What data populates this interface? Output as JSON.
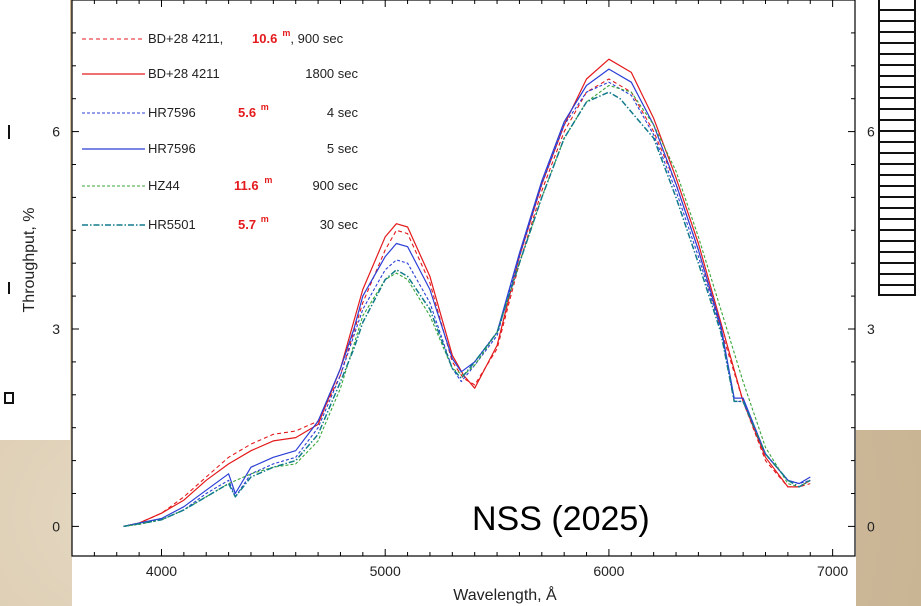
{
  "chart_data": {
    "type": "line",
    "xlabel": "Wavelength, Å",
    "ylabel": "Throughput, %",
    "xlim": [
      3600,
      7100
    ],
    "ylim": [
      -0.45,
      8.0
    ],
    "xticks": [
      4000,
      5000,
      6000,
      7000
    ],
    "yticks": [
      0,
      3,
      6
    ],
    "xtick_labels": [
      "4000",
      "5000",
      "6000",
      "7000"
    ],
    "ytick_labels": [
      "0",
      "3",
      "6"
    ],
    "grid": false,
    "legend_position": "top-left",
    "annotation": "NSS (2025)",
    "right_axis_partial_labels": [
      "6",
      "3",
      "0"
    ],
    "series": [
      {
        "name": "BD+28 4211,",
        "magnitude": "10.6",
        "mag_suffix": "m",
        "trailing": ", 900 sec",
        "exposure": "",
        "color": "#e41a1c",
        "dash": "4,3",
        "width": 1.1,
        "x": [
          3830,
          3900,
          4000,
          4100,
          4200,
          4300,
          4400,
          4500,
          4600,
          4700,
          4800,
          4900,
          5000,
          5050,
          5100,
          5200,
          5300,
          5350,
          5400,
          5500,
          5600,
          5700,
          5800,
          5900,
          6000,
          6100,
          6200,
          6300,
          6400,
          6500,
          6600,
          6700,
          6800,
          6850,
          6900
        ],
        "y": [
          0.0,
          0.05,
          0.2,
          0.45,
          0.75,
          1.05,
          1.25,
          1.4,
          1.45,
          1.6,
          2.3,
          3.4,
          4.2,
          4.5,
          4.45,
          3.7,
          2.5,
          2.25,
          2.15,
          2.7,
          4.0,
          5.1,
          6.0,
          6.6,
          6.8,
          6.6,
          6.0,
          5.2,
          4.2,
          3.0,
          1.9,
          1.0,
          0.6,
          0.6,
          0.65
        ]
      },
      {
        "name": "BD+28 4211",
        "magnitude": "",
        "mag_suffix": "",
        "trailing": "",
        "exposure": "1800 sec",
        "color": "#e41a1c",
        "dash": "",
        "width": 1.2,
        "x": [
          3830,
          3900,
          4000,
          4100,
          4200,
          4300,
          4400,
          4500,
          4600,
          4700,
          4800,
          4900,
          5000,
          5050,
          5100,
          5200,
          5300,
          5350,
          5400,
          5500,
          5600,
          5700,
          5800,
          5900,
          6000,
          6100,
          6200,
          6300,
          6400,
          6500,
          6600,
          6700,
          6800,
          6850,
          6900
        ],
        "y": [
          0.0,
          0.05,
          0.2,
          0.4,
          0.7,
          0.95,
          1.15,
          1.3,
          1.35,
          1.55,
          2.4,
          3.6,
          4.4,
          4.6,
          4.55,
          3.8,
          2.6,
          2.3,
          2.1,
          2.75,
          4.1,
          5.2,
          6.1,
          6.8,
          7.1,
          6.9,
          6.2,
          5.3,
          4.3,
          3.1,
          1.9,
          1.05,
          0.6,
          0.6,
          0.7
        ]
      },
      {
        "name": "HR7596",
        "magnitude": "5.6",
        "mag_suffix": "m",
        "trailing": "",
        "exposure": "4 sec",
        "color": "#2b3fd6",
        "dash": "3,2",
        "width": 1.1,
        "x": [
          3830,
          3900,
          4000,
          4100,
          4200,
          4300,
          4330,
          4400,
          4500,
          4600,
          4700,
          4800,
          4860,
          4900,
          5000,
          5050,
          5100,
          5200,
          5300,
          5340,
          5400,
          5500,
          5600,
          5700,
          5800,
          5900,
          6000,
          6100,
          6200,
          6300,
          6400,
          6500,
          6560,
          6600,
          6700,
          6800,
          6850,
          6900
        ],
        "y": [
          0.0,
          0.05,
          0.1,
          0.25,
          0.5,
          0.7,
          0.45,
          0.8,
          0.95,
          1.05,
          1.5,
          2.3,
          2.9,
          3.3,
          3.9,
          4.05,
          4.0,
          3.4,
          2.4,
          2.2,
          2.45,
          2.9,
          4.1,
          5.2,
          6.1,
          6.6,
          6.75,
          6.55,
          5.95,
          5.1,
          4.1,
          3.0,
          1.9,
          1.9,
          1.1,
          0.7,
          0.65,
          0.7
        ]
      },
      {
        "name": "HR7596",
        "magnitude": "",
        "mag_suffix": "",
        "trailing": "",
        "exposure": "5 sec",
        "color": "#2b3fd6",
        "dash": "",
        "width": 1.2,
        "x": [
          3830,
          3900,
          4000,
          4100,
          4200,
          4300,
          4330,
          4400,
          4500,
          4600,
          4700,
          4800,
          4860,
          4900,
          5000,
          5050,
          5100,
          5200,
          5300,
          5340,
          5400,
          5500,
          5600,
          5700,
          5800,
          5900,
          6000,
          6100,
          6200,
          6300,
          6400,
          6500,
          6560,
          6600,
          6700,
          6800,
          6850,
          6900
        ],
        "y": [
          0.0,
          0.05,
          0.12,
          0.3,
          0.55,
          0.8,
          0.5,
          0.9,
          1.05,
          1.15,
          1.6,
          2.4,
          3.0,
          3.5,
          4.1,
          4.3,
          4.25,
          3.6,
          2.55,
          2.35,
          2.5,
          2.95,
          4.15,
          5.25,
          6.15,
          6.7,
          6.95,
          6.75,
          6.1,
          5.2,
          4.2,
          3.05,
          1.95,
          1.95,
          1.1,
          0.7,
          0.65,
          0.75
        ]
      },
      {
        "name": "HZ44",
        "magnitude": "11.6",
        "mag_suffix": "m",
        "trailing": "",
        "exposure": "900 sec",
        "color": "#3aa63a",
        "dash": "3,2",
        "width": 1.1,
        "x": [
          3830,
          3900,
          4000,
          4100,
          4200,
          4300,
          4400,
          4500,
          4600,
          4700,
          4800,
          4900,
          5000,
          5050,
          5100,
          5200,
          5300,
          5350,
          5400,
          5500,
          5600,
          5700,
          5800,
          5900,
          6000,
          6100,
          6200,
          6300,
          6400,
          6500,
          6600,
          6700,
          6800,
          6850,
          6900
        ],
        "y": [
          0.0,
          0.03,
          0.1,
          0.25,
          0.45,
          0.65,
          0.8,
          0.9,
          0.95,
          1.3,
          2.1,
          3.2,
          3.75,
          3.85,
          3.75,
          3.2,
          2.4,
          2.3,
          2.45,
          2.95,
          4.0,
          5.0,
          5.9,
          6.45,
          6.7,
          6.6,
          6.1,
          5.4,
          4.4,
          3.3,
          2.2,
          1.2,
          0.65,
          0.6,
          0.7
        ]
      },
      {
        "name": "HR5501",
        "magnitude": "5.7",
        "mag_suffix": "m",
        "trailing": "",
        "exposure": "30 sec",
        "color": "#117a8b",
        "dash": "6,2,1.5,2",
        "width": 1.5,
        "x": [
          3830,
          3900,
          4000,
          4100,
          4200,
          4300,
          4330,
          4400,
          4500,
          4600,
          4700,
          4800,
          4860,
          4900,
          5000,
          5050,
          5100,
          5200,
          5300,
          5340,
          5400,
          5500,
          5600,
          5700,
          5800,
          5900,
          6000,
          6050,
          6100,
          6200,
          6300,
          6400,
          6500,
          6560,
          6600,
          6700,
          6800,
          6850,
          6900
        ],
        "y": [
          0.0,
          0.04,
          0.1,
          0.25,
          0.45,
          0.65,
          0.45,
          0.75,
          0.9,
          1.0,
          1.4,
          2.2,
          2.7,
          3.1,
          3.75,
          3.9,
          3.8,
          3.3,
          2.4,
          2.25,
          2.5,
          2.95,
          4.0,
          5.0,
          5.9,
          6.45,
          6.6,
          6.5,
          6.3,
          5.9,
          5.0,
          4.0,
          2.95,
          1.9,
          1.9,
          1.1,
          0.7,
          0.6,
          0.7
        ]
      }
    ]
  }
}
